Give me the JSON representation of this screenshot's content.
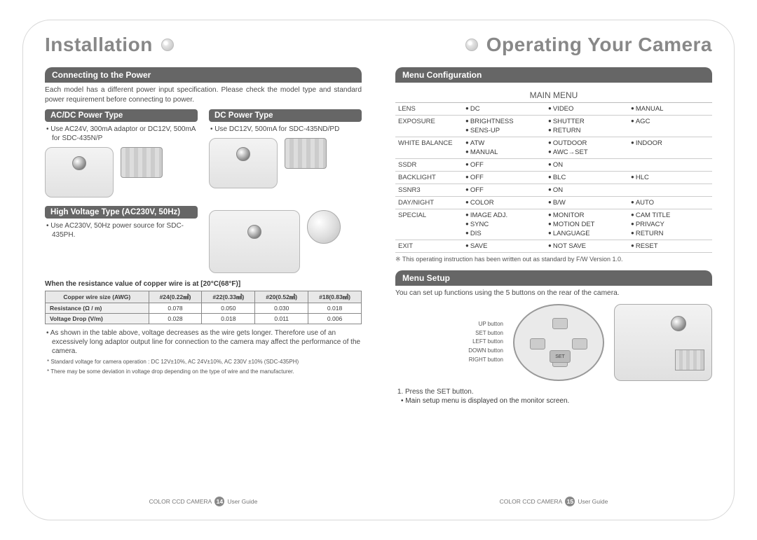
{
  "colors": {
    "text": "#3a3a3a",
    "muted": "#888888",
    "header_bg": "#666666",
    "header_fg": "#ffffff",
    "rule": "#666666",
    "table_border": "#888888",
    "page_border": "#d8d8d8"
  },
  "typography": {
    "chapter_fontsize": 28,
    "section_fontsize": 12,
    "body_fontsize": 10,
    "table_fontsize": 8.5,
    "footnote_fontsize": 8
  },
  "left": {
    "chapter_title": "Installation",
    "section1_title": "Connecting to the Power",
    "section1_body": "Each model has a different power input specification. Please check the model type and standard power requirement before connecting to power.",
    "acdc_title": "AC/DC Power Type",
    "acdc_bullet": "Use AC24V, 300mA adaptor or DC12V, 500mA for SDC-435N/P",
    "dc_title": "DC Power Type",
    "dc_bullet": "Use DC12V, 500mA for SDC-435ND/PD",
    "hv_title": "High Voltage Type (AC230V, 50Hz)",
    "hv_bullet": "Use AC230V, 50Hz power source for SDC-435PH.",
    "resist_title": "When the resistance value of copper wire is at [20°C(68°F)]",
    "wire_table": {
      "columns": [
        "Copper wire size (AWG)",
        "#24(0.22㎟)",
        "#22(0.33㎟)",
        "#20(0.52㎟)",
        "#18(0.83㎟)"
      ],
      "rows": [
        [
          "Resistance (Ω / m)",
          "0.078",
          "0.050",
          "0.030",
          "0.018"
        ],
        [
          "Voltage Drop (V/m)",
          "0.028",
          "0.018",
          "0.011",
          "0.006"
        ]
      ]
    },
    "table_note": "As shown in the table above, voltage decreases as the wire gets longer. Therefore use of an excessively long adaptor output line for connection to the camera may affect the performance of the camera.",
    "footnote1": "Standard voltage for camera operation : DC 12V±10%, AC 24V±10%, AC 230V ±10% (SDC-435PH)",
    "footnote2": "There may be some deviation in voltage drop depending on the type of wire and the manufacturer.",
    "footer_left": "COLOR CCD CAMERA",
    "footer_page": "14",
    "footer_right": "User Guide"
  },
  "right": {
    "chapter_title": "Operating Your Camera",
    "section1_title": "Menu Configuration",
    "menu_title": "MAIN MENU",
    "menu_rows": [
      {
        "key": "LENS",
        "opts": [
          "DC",
          "VIDEO",
          "MANUAL"
        ]
      },
      {
        "key": "EXPOSURE",
        "opts": [
          "BRIGHTNESS",
          "SHUTTER",
          "AGC",
          "SENS-UP",
          "RETURN"
        ]
      },
      {
        "key": "WHITE BALANCE",
        "opts": [
          "ATW",
          "OUTDOOR",
          "INDOOR",
          "MANUAL",
          "AWC→SET"
        ]
      },
      {
        "key": "SSDR",
        "opts": [
          "OFF",
          "ON"
        ]
      },
      {
        "key": "BACKLIGHT",
        "opts": [
          "OFF",
          "BLC",
          "HLC"
        ]
      },
      {
        "key": "SSNR3",
        "opts": [
          "OFF",
          "ON"
        ]
      },
      {
        "key": "DAY/NIGHT",
        "opts": [
          "COLOR",
          "B/W",
          "AUTO"
        ]
      },
      {
        "key": "SPECIAL",
        "opts": [
          "IMAGE ADJ.",
          "MONITOR",
          "CAM TITLE",
          "SYNC",
          "MOTION DET",
          "PRIVACY",
          "DIS",
          "LANGUAGE",
          "RETURN"
        ]
      },
      {
        "key": "EXIT",
        "opts": [
          "SAVE",
          "NOT SAVE",
          "RESET"
        ]
      }
    ],
    "menu_note": "This operating instruction has been written out as standard by F/W Version 1.0.",
    "section2_title": "Menu Setup",
    "section2_body": "You can set up functions using the 5 buttons on the rear of the camera.",
    "button_labels": {
      "up": "UP button",
      "set": "SET button",
      "left": "LEFT button",
      "down": "DOWN button",
      "right": "RIGHT button",
      "set_caption": "SET"
    },
    "step1": "Press the SET button.",
    "step1_sub": "Main setup menu is displayed on the monitor screen.",
    "footer_left": "COLOR CCD CAMERA",
    "footer_page": "15",
    "footer_right": "User Guide"
  }
}
